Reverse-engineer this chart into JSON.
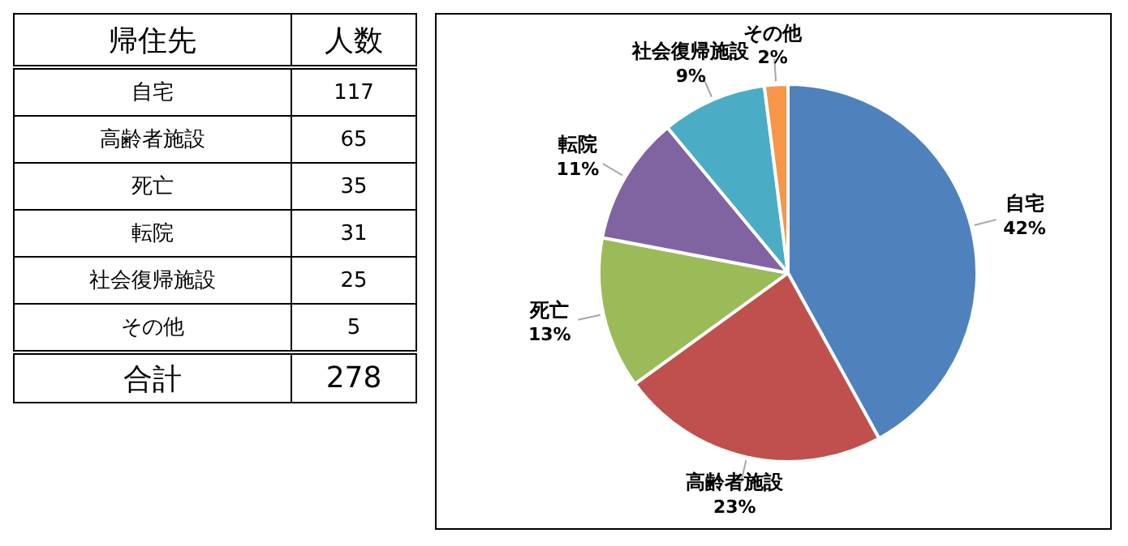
{
  "chart_data": {
    "type": "pie",
    "categories": [
      "自宅",
      "高齢者施設",
      "死亡",
      "転院",
      "社会復帰施設",
      "その他"
    ],
    "values": [
      42,
      23,
      13,
      11,
      9,
      2
    ],
    "colors": [
      "#4f81bd",
      "#c0504d",
      "#9bbb59",
      "#8064a2",
      "#4bacc6",
      "#f79646"
    ],
    "value_labels": [
      "42%",
      "23%",
      "13%",
      "11%",
      "9%",
      "2%"
    ],
    "annotations": [
      "帰住先",
      "人数",
      "117",
      "65",
      "35",
      "31",
      "25",
      "5",
      "合計",
      "278"
    ],
    "legend": false
  }
}
